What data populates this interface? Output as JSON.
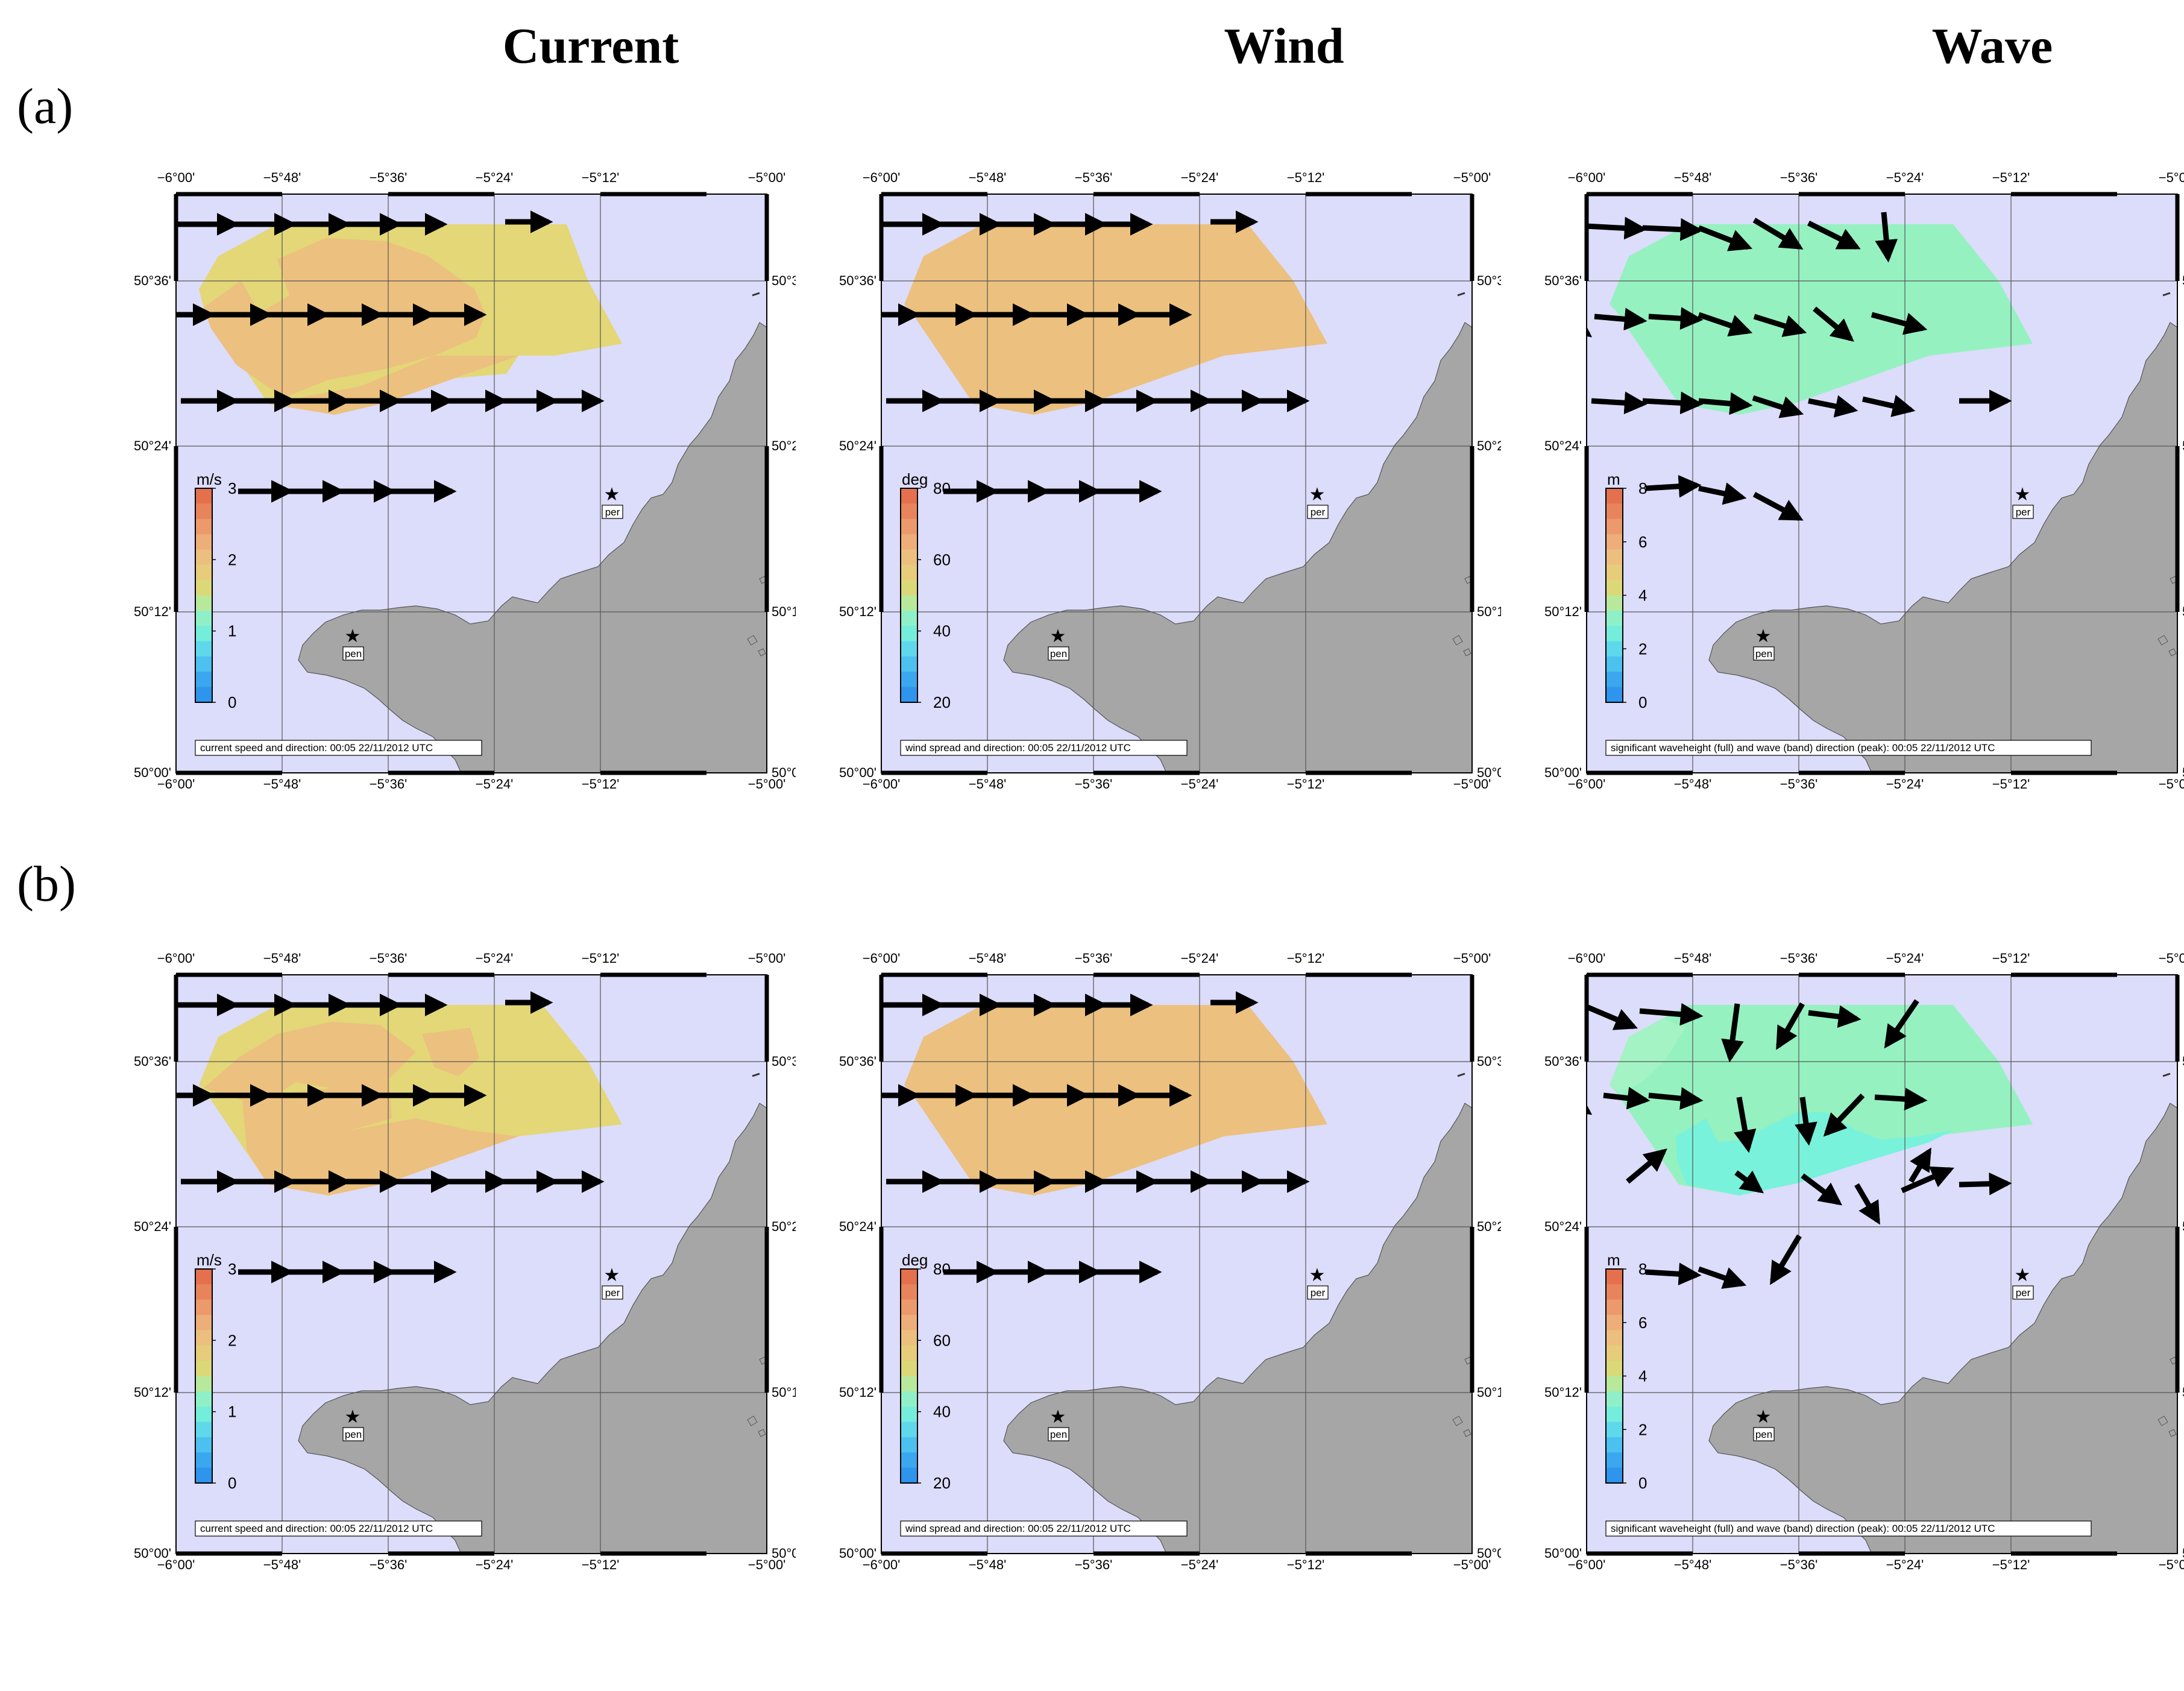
{
  "columns": [
    {
      "title": "Current"
    },
    {
      "title": "Wind"
    },
    {
      "title": "Wave"
    }
  ],
  "rows": [
    {
      "label": "(a)"
    },
    {
      "label": "(b)"
    }
  ],
  "axes": {
    "lon_ticks": [
      "−6°00'",
      "−5°48'",
      "−5°36'",
      "−5°24'",
      "−5°12'",
      "−5°00'"
    ],
    "lat_ticks": [
      "50°36'",
      "50°24'",
      "50°12'",
      "50°00'"
    ]
  },
  "stations": [
    {
      "id": "per",
      "label": "per"
    },
    {
      "id": "pen",
      "label": "pen"
    }
  ],
  "colors": {
    "sea": "#dcdcfb",
    "land": "#a6a6a6",
    "orange": "#ecc07e",
    "yellow": "#e3d777",
    "green_light": "#a4f3c4",
    "green": "#96f1c0",
    "cyan": "#78f2da",
    "arrow": "#000000"
  },
  "panels": [
    {
      "id": "a-current",
      "colorbar_unit": "m/s",
      "colorbar_ticks": [
        "3",
        "2",
        "1",
        "0"
      ],
      "caption": "current speed and direction: 00:05 22/11/2012 UTC"
    },
    {
      "id": "a-wind",
      "colorbar_unit": "deg",
      "colorbar_ticks": [
        "80",
        "60",
        "40",
        "20"
      ],
      "caption": "wind spread and direction: 00:05 22/11/2012 UTC"
    },
    {
      "id": "a-wave",
      "colorbar_unit": "m",
      "colorbar_ticks": [
        "8",
        "6",
        "4",
        "2",
        "0"
      ],
      "caption": "significant waveheight (full) and wave (band) direction (peak): 00:05 22/11/2012 UTC"
    },
    {
      "id": "b-current",
      "colorbar_unit": "m/s",
      "colorbar_ticks": [
        "3",
        "2",
        "1",
        "0"
      ],
      "caption": "current speed and direction: 00:05 22/11/2012 UTC"
    },
    {
      "id": "b-wind",
      "colorbar_unit": "deg",
      "colorbar_ticks": [
        "80",
        "60",
        "40",
        "20"
      ],
      "caption": "wind spread and direction: 00:05 22/11/2012 UTC"
    },
    {
      "id": "b-wave",
      "colorbar_unit": "m",
      "colorbar_ticks": [
        "8",
        "6",
        "4",
        "2",
        "0"
      ],
      "caption": "significant waveheight (full) and wave (band) direction (peak): 00:05 22/11/2012 UTC"
    }
  ]
}
